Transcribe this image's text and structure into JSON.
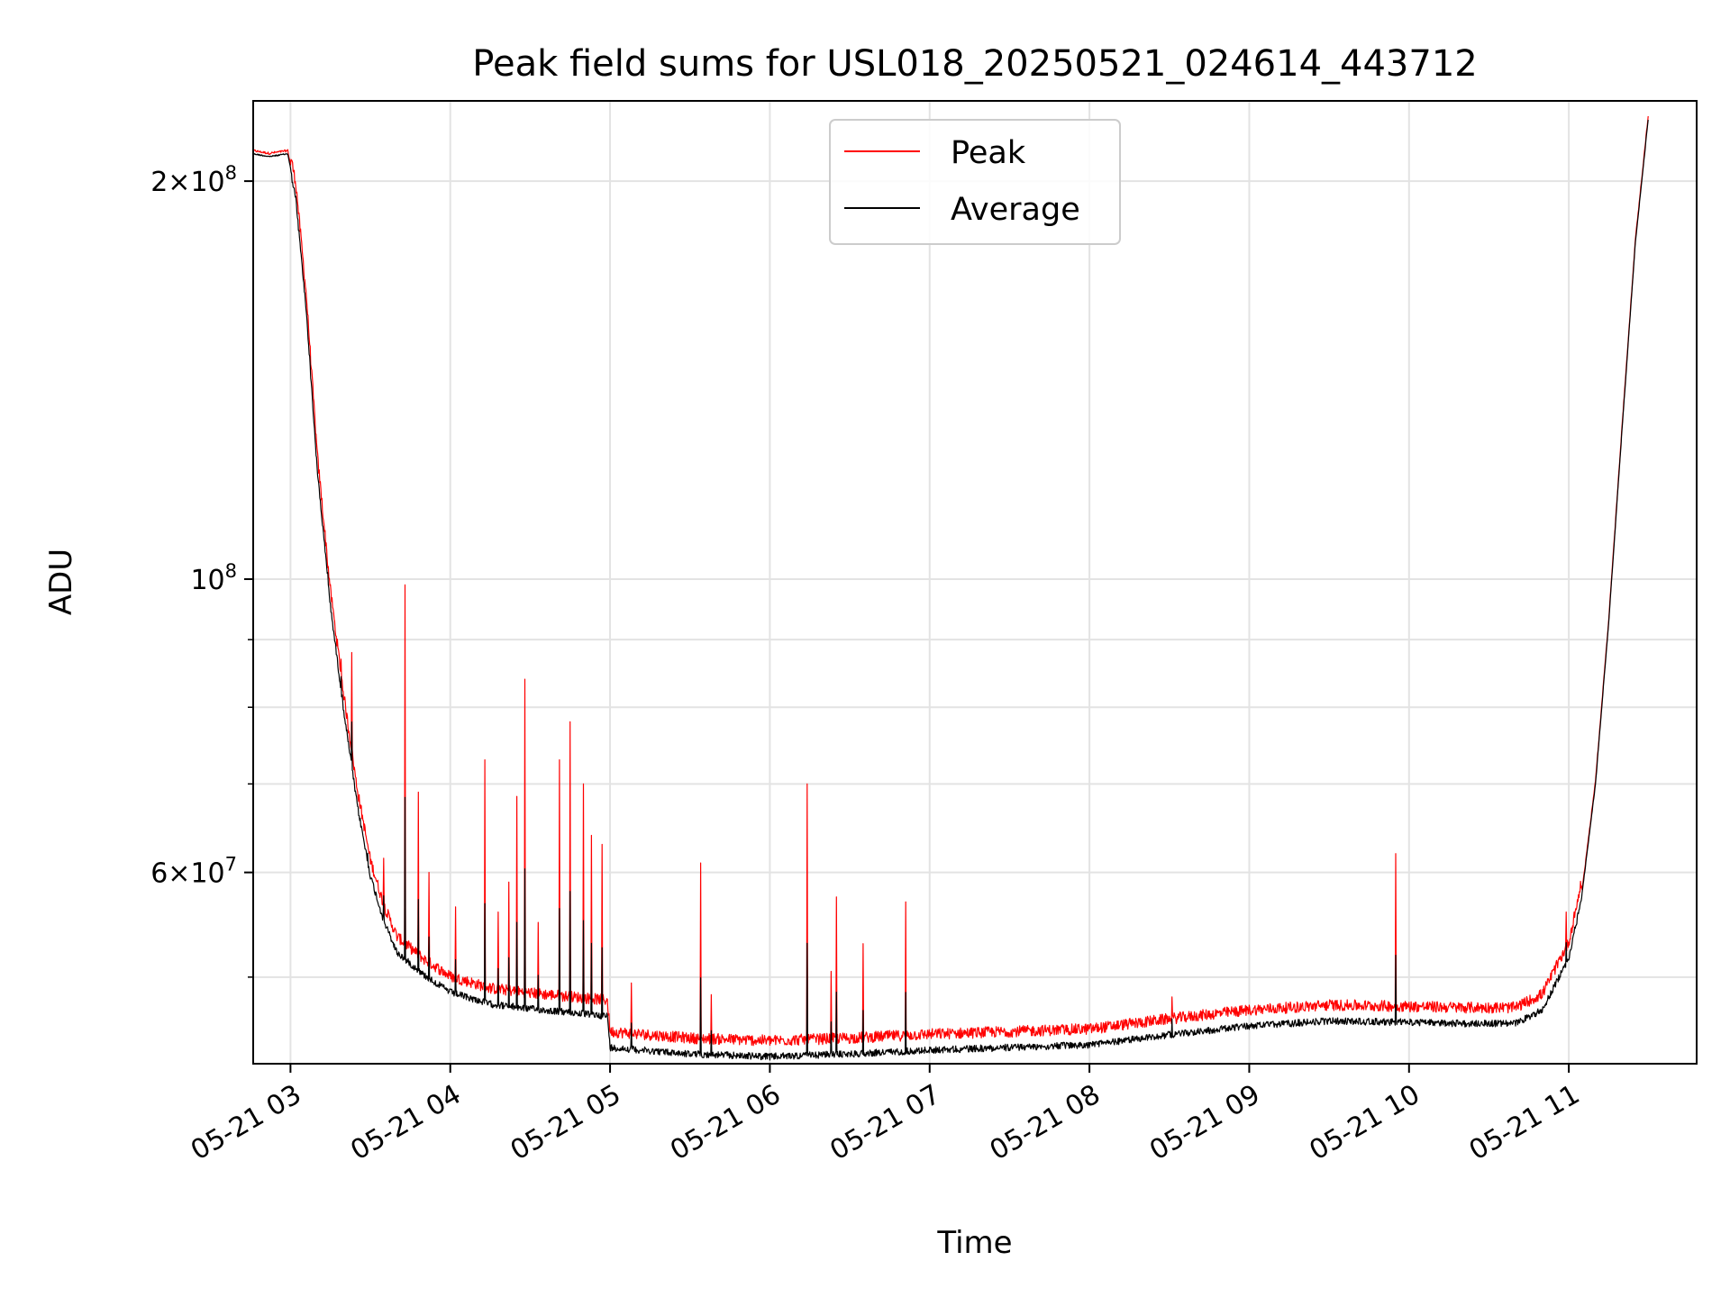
{
  "chart_data": {
    "type": "line",
    "title": "Peak field sums for USL018_20250521_024614_443712",
    "xlabel": "Time",
    "ylabel": "ADU",
    "y_scale": "log",
    "ylim": [
      43000000,
      230000000
    ],
    "xlim": [
      "2025-05-21 02:46",
      "2025-05-21 11:48"
    ],
    "grid": true,
    "legend": "upper center",
    "x_ticks": [
      {
        "t": "2025-05-21 03:00",
        "label": "05-21 03"
      },
      {
        "t": "2025-05-21 04:00",
        "label": "05-21 04"
      },
      {
        "t": "2025-05-21 05:00",
        "label": "05-21 05"
      },
      {
        "t": "2025-05-21 06:00",
        "label": "05-21 06"
      },
      {
        "t": "2025-05-21 07:00",
        "label": "05-21 07"
      },
      {
        "t": "2025-05-21 08:00",
        "label": "05-21 08"
      },
      {
        "t": "2025-05-21 09:00",
        "label": "05-21 09"
      },
      {
        "t": "2025-05-21 10:00",
        "label": "05-21 10"
      },
      {
        "t": "2025-05-21 11:00",
        "label": "05-21 11"
      }
    ],
    "y_major_ticks": [
      {
        "value": 60000000,
        "mant": "6",
        "exp": "7"
      },
      {
        "value": 100000000,
        "mant": "",
        "exp": "8"
      },
      {
        "value": 200000000,
        "mant": "2",
        "exp": "8"
      }
    ],
    "y_minor_ticks": [
      50000000,
      70000000,
      80000000,
      90000000
    ],
    "series": [
      {
        "name": "Average",
        "color": "#000000",
        "points": [
          [
            "2025-05-21 02:46",
            210000000
          ],
          [
            "2025-05-21 02:52",
            209000000
          ],
          [
            "2025-05-21 02:59",
            210000000
          ],
          [
            "2025-05-21 03:02",
            195000000
          ],
          [
            "2025-05-21 03:06",
            160000000
          ],
          [
            "2025-05-21 03:10",
            122000000
          ],
          [
            "2025-05-21 03:15",
            96000000
          ],
          [
            "2025-05-21 03:20",
            80000000
          ],
          [
            "2025-05-21 03:25",
            68000000
          ],
          [
            "2025-05-21 03:30",
            60000000
          ],
          [
            "2025-05-21 03:35",
            55500000
          ],
          [
            "2025-05-21 03:40",
            52500000
          ],
          [
            "2025-05-21 03:50",
            50500000
          ],
          [
            "2025-05-21 04:00",
            49000000
          ],
          [
            "2025-05-21 04:15",
            48000000
          ],
          [
            "2025-05-21 04:30",
            47600000
          ],
          [
            "2025-05-21 04:45",
            47300000
          ],
          [
            "2025-05-21 04:59",
            47000000
          ],
          [
            "2025-05-21 05:00",
            44500000
          ],
          [
            "2025-05-21 05:30",
            44000000
          ],
          [
            "2025-05-21 06:00",
            43800000
          ],
          [
            "2025-05-21 06:30",
            44000000
          ],
          [
            "2025-05-21 07:00",
            44300000
          ],
          [
            "2025-05-21 07:30",
            44500000
          ],
          [
            "2025-05-21 08:00",
            44700000
          ],
          [
            "2025-05-21 08:30",
            45500000
          ],
          [
            "2025-05-21 09:00",
            46200000
          ],
          [
            "2025-05-21 09:30",
            46600000
          ],
          [
            "2025-05-21 10:00",
            46500000
          ],
          [
            "2025-05-21 10:20",
            46400000
          ],
          [
            "2025-05-21 10:40",
            46400000
          ],
          [
            "2025-05-21 10:50",
            47500000
          ],
          [
            "2025-05-21 11:00",
            52000000
          ],
          [
            "2025-05-21 11:05",
            58000000
          ],
          [
            "2025-05-21 11:10",
            70000000
          ],
          [
            "2025-05-21 11:15",
            93000000
          ],
          [
            "2025-05-21 11:20",
            130000000
          ],
          [
            "2025-05-21 11:25",
            180000000
          ],
          [
            "2025-05-21 11:30",
            225000000
          ]
        ],
        "noise_amplitude": 0.012
      },
      {
        "name": "Peak",
        "color": "#ff0000",
        "base_offset": 0.012,
        "noise_amplitude": 0.02,
        "spikes": [
          [
            "2025-05-21 03:14",
            102000000
          ],
          [
            "2025-05-21 03:19",
            87000000
          ],
          [
            "2025-05-21 03:23",
            88000000
          ],
          [
            "2025-05-21 03:29",
            63000000
          ],
          [
            "2025-05-21 03:35",
            61500000
          ],
          [
            "2025-05-21 03:43",
            99000000
          ],
          [
            "2025-05-21 03:48",
            69000000
          ],
          [
            "2025-05-21 03:52",
            60000000
          ],
          [
            "2025-05-21 04:02",
            56500000
          ],
          [
            "2025-05-21 04:13",
            73000000
          ],
          [
            "2025-05-21 04:18",
            56000000
          ],
          [
            "2025-05-21 04:22",
            59000000
          ],
          [
            "2025-05-21 04:25",
            68500000
          ],
          [
            "2025-05-21 04:28",
            84000000
          ],
          [
            "2025-05-21 04:33",
            55000000
          ],
          [
            "2025-05-21 04:41",
            73000000
          ],
          [
            "2025-05-21 04:45",
            78000000
          ],
          [
            "2025-05-21 04:50",
            70000000
          ],
          [
            "2025-05-21 04:53",
            64000000
          ],
          [
            "2025-05-21 04:57",
            63000000
          ],
          [
            "2025-05-21 05:08",
            49500000
          ],
          [
            "2025-05-21 05:34",
            61000000
          ],
          [
            "2025-05-21 05:38",
            48500000
          ],
          [
            "2025-05-21 06:14",
            70000000
          ],
          [
            "2025-05-21 06:23",
            50500000
          ],
          [
            "2025-05-21 06:25",
            57500000
          ],
          [
            "2025-05-21 06:35",
            53000000
          ],
          [
            "2025-05-21 06:51",
            57000000
          ],
          [
            "2025-05-21 08:31",
            48300000
          ],
          [
            "2025-05-21 09:55",
            62000000
          ],
          [
            "2025-05-21 10:59",
            56000000
          ]
        ]
      }
    ]
  }
}
